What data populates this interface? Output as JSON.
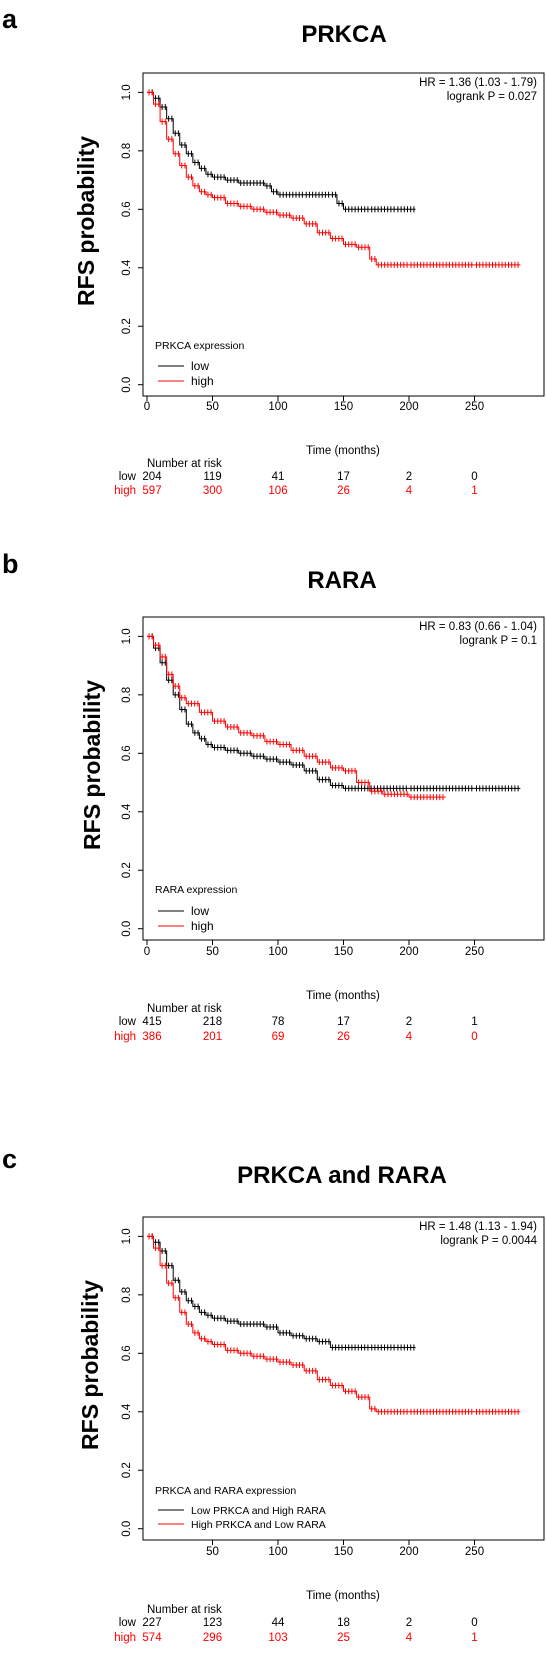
{
  "colors": {
    "low": "#000000",
    "high": "#ff0000"
  },
  "chart_data": [
    {
      "type": "line",
      "panel_letter": "a",
      "title": "PRKCA",
      "ylabel": "RFS probability",
      "xlabel": "Time (months)",
      "xlim": [
        0,
        290
      ],
      "ylim": [
        0,
        1
      ],
      "xticks": [
        "0",
        "50",
        "100",
        "150",
        "200",
        "250"
      ],
      "yticks": [
        "0.0",
        "0.2",
        "0.4",
        "0.6",
        "0.8",
        "1.0"
      ],
      "hr_text": "HR = 1.36 (1.03 - 1.79)",
      "p_text": "logrank P = 0.027",
      "legend_title": "PRKCA expression",
      "legend_labels": [
        "low",
        "high"
      ],
      "risk_header": "Number at risk",
      "risk_rows": [
        {
          "label": "low",
          "values": [
            "204",
            "119",
            "41",
            "17",
            "2",
            "0"
          ]
        },
        {
          "label": "high",
          "values": [
            "597",
            "300",
            "106",
            "26",
            "4",
            "1"
          ]
        }
      ],
      "series": [
        {
          "name": "low",
          "points": [
            [
              0,
              1
            ],
            [
              5,
              0.98
            ],
            [
              10,
              0.95
            ],
            [
              15,
              0.91
            ],
            [
              20,
              0.86
            ],
            [
              25,
              0.82
            ],
            [
              30,
              0.79
            ],
            [
              35,
              0.76
            ],
            [
              40,
              0.74
            ],
            [
              45,
              0.72
            ],
            [
              50,
              0.71
            ],
            [
              60,
              0.7
            ],
            [
              70,
              0.69
            ],
            [
              80,
              0.69
            ],
            [
              90,
              0.68
            ],
            [
              95,
              0.66
            ],
            [
              100,
              0.65
            ],
            [
              120,
              0.65
            ],
            [
              140,
              0.65
            ],
            [
              145,
              0.62
            ],
            [
              150,
              0.6
            ],
            [
              170,
              0.6
            ],
            [
              190,
              0.6
            ],
            [
              205,
              0.6
            ]
          ]
        },
        {
          "name": "high",
          "points": [
            [
              0,
              1
            ],
            [
              5,
              0.96
            ],
            [
              10,
              0.9
            ],
            [
              15,
              0.84
            ],
            [
              20,
              0.79
            ],
            [
              25,
              0.75
            ],
            [
              30,
              0.71
            ],
            [
              35,
              0.68
            ],
            [
              40,
              0.66
            ],
            [
              45,
              0.65
            ],
            [
              50,
              0.64
            ],
            [
              60,
              0.62
            ],
            [
              70,
              0.61
            ],
            [
              80,
              0.6
            ],
            [
              90,
              0.59
            ],
            [
              100,
              0.58
            ],
            [
              110,
              0.57
            ],
            [
              120,
              0.55
            ],
            [
              130,
              0.52
            ],
            [
              140,
              0.5
            ],
            [
              150,
              0.48
            ],
            [
              160,
              0.47
            ],
            [
              170,
              0.43
            ],
            [
              175,
              0.41
            ],
            [
              200,
              0.41
            ],
            [
              250,
              0.41
            ],
            [
              285,
              0.41
            ]
          ]
        }
      ]
    },
    {
      "type": "line",
      "panel_letter": "b",
      "title": "RARA",
      "ylabel": "RFS probability",
      "xlabel": "Time (months)",
      "xlim": [
        0,
        290
      ],
      "ylim": [
        0,
        1
      ],
      "xticks": [
        "0",
        "50",
        "100",
        "150",
        "200",
        "250"
      ],
      "yticks": [
        "0.0",
        "0.2",
        "0.4",
        "0.6",
        "0.8",
        "1.0"
      ],
      "hr_text": "HR = 0.83 (0.66 - 1.04)",
      "p_text": "logrank P = 0.1",
      "legend_title": "RARA expression",
      "legend_labels": [
        "low",
        "high"
      ],
      "risk_header": "Number at risk",
      "risk_rows": [
        {
          "label": "low",
          "values": [
            "415",
            "218",
            "78",
            "17",
            "2",
            "1"
          ]
        },
        {
          "label": "high",
          "values": [
            "386",
            "201",
            "69",
            "26",
            "4",
            "0"
          ]
        }
      ],
      "series": [
        {
          "name": "low",
          "points": [
            [
              0,
              1
            ],
            [
              5,
              0.96
            ],
            [
              10,
              0.91
            ],
            [
              15,
              0.85
            ],
            [
              20,
              0.8
            ],
            [
              25,
              0.75
            ],
            [
              30,
              0.7
            ],
            [
              35,
              0.67
            ],
            [
              40,
              0.65
            ],
            [
              45,
              0.63
            ],
            [
              50,
              0.62
            ],
            [
              60,
              0.61
            ],
            [
              70,
              0.6
            ],
            [
              80,
              0.59
            ],
            [
              90,
              0.58
            ],
            [
              100,
              0.57
            ],
            [
              110,
              0.56
            ],
            [
              120,
              0.54
            ],
            [
              130,
              0.51
            ],
            [
              140,
              0.49
            ],
            [
              150,
              0.48
            ],
            [
              200,
              0.48
            ],
            [
              250,
              0.48
            ],
            [
              285,
              0.48
            ]
          ]
        },
        {
          "name": "high",
          "points": [
            [
              0,
              1
            ],
            [
              5,
              0.97
            ],
            [
              10,
              0.93
            ],
            [
              15,
              0.87
            ],
            [
              20,
              0.83
            ],
            [
              25,
              0.79
            ],
            [
              30,
              0.77
            ],
            [
              40,
              0.74
            ],
            [
              50,
              0.71
            ],
            [
              60,
              0.69
            ],
            [
              70,
              0.67
            ],
            [
              80,
              0.66
            ],
            [
              90,
              0.64
            ],
            [
              100,
              0.63
            ],
            [
              110,
              0.61
            ],
            [
              120,
              0.59
            ],
            [
              130,
              0.57
            ],
            [
              140,
              0.55
            ],
            [
              150,
              0.54
            ],
            [
              160,
              0.5
            ],
            [
              170,
              0.47
            ],
            [
              180,
              0.46
            ],
            [
              200,
              0.45
            ],
            [
              228,
              0.45
            ]
          ]
        }
      ]
    },
    {
      "type": "line",
      "panel_letter": "c",
      "title": "PRKCA and RARA",
      "ylabel": "RFS probability",
      "xlabel": "Time (months)",
      "xlim": [
        0,
        290
      ],
      "ylim": [
        0,
        1
      ],
      "xticks": [
        "50",
        "100",
        "150",
        "200",
        "250"
      ],
      "yticks": [
        "0.0",
        "0.2",
        "0.4",
        "0.6",
        "0.8",
        "1.0"
      ],
      "hr_text": "HR = 1.48 (1.13 - 1.94)",
      "p_text": "logrank P = 0.0044",
      "legend_title": "PRKCA and RARA expression",
      "legend_labels": [
        "Low PRKCA and High RARA",
        "High PRKCA and Low RARA"
      ],
      "risk_header": "Number at risk",
      "risk_rows": [
        {
          "label": "low",
          "values": [
            "227",
            "123",
            "44",
            "18",
            "2",
            "0"
          ]
        },
        {
          "label": "high",
          "values": [
            "574",
            "296",
            "103",
            "25",
            "4",
            "1"
          ]
        }
      ],
      "series": [
        {
          "name": "Low PRKCA and High RARA",
          "points": [
            [
              0,
              1
            ],
            [
              5,
              0.98
            ],
            [
              10,
              0.95
            ],
            [
              15,
              0.9
            ],
            [
              20,
              0.85
            ],
            [
              25,
              0.81
            ],
            [
              30,
              0.78
            ],
            [
              35,
              0.76
            ],
            [
              40,
              0.74
            ],
            [
              45,
              0.73
            ],
            [
              50,
              0.72
            ],
            [
              60,
              0.71
            ],
            [
              70,
              0.7
            ],
            [
              80,
              0.7
            ],
            [
              90,
              0.69
            ],
            [
              100,
              0.67
            ],
            [
              110,
              0.66
            ],
            [
              120,
              0.65
            ],
            [
              130,
              0.64
            ],
            [
              140,
              0.62
            ],
            [
              150,
              0.62
            ],
            [
              170,
              0.62
            ],
            [
              190,
              0.62
            ],
            [
              205,
              0.62
            ]
          ]
        },
        {
          "name": "High PRKCA and Low RARA",
          "points": [
            [
              0,
              1
            ],
            [
              5,
              0.96
            ],
            [
              10,
              0.9
            ],
            [
              15,
              0.84
            ],
            [
              20,
              0.79
            ],
            [
              25,
              0.74
            ],
            [
              30,
              0.7
            ],
            [
              35,
              0.67
            ],
            [
              40,
              0.65
            ],
            [
              45,
              0.64
            ],
            [
              50,
              0.63
            ],
            [
              60,
              0.61
            ],
            [
              70,
              0.6
            ],
            [
              80,
              0.59
            ],
            [
              90,
              0.58
            ],
            [
              100,
              0.57
            ],
            [
              110,
              0.56
            ],
            [
              120,
              0.54
            ],
            [
              130,
              0.51
            ],
            [
              140,
              0.49
            ],
            [
              150,
              0.47
            ],
            [
              160,
              0.45
            ],
            [
              170,
              0.41
            ],
            [
              175,
              0.4
            ],
            [
              200,
              0.4
            ],
            [
              250,
              0.4
            ],
            [
              285,
              0.4
            ]
          ]
        }
      ]
    }
  ]
}
